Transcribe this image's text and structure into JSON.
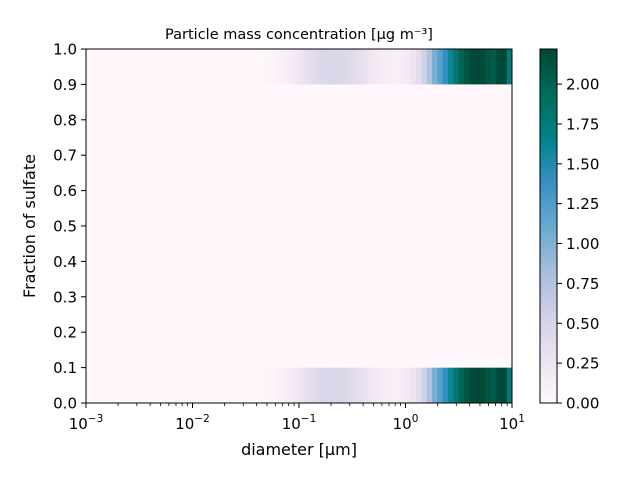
{
  "chart_data": {
    "type": "heatmap",
    "title": "Particle mass concentration [μg m⁻³]",
    "xlabel": "diameter [µm]",
    "ylabel": "Fraction of sulfate",
    "xscale": "log",
    "xlim": [
      0.001,
      10
    ],
    "ylim": [
      0,
      1
    ],
    "x_ticks": [
      {
        "base": "10",
        "exp": "−3"
      },
      {
        "base": "10",
        "exp": "−2"
      },
      {
        "base": "10",
        "exp": "−1"
      },
      {
        "base": "10",
        "exp": "0"
      },
      {
        "base": "10",
        "exp": "1"
      }
    ],
    "y_ticks": [
      "0.0",
      "0.1",
      "0.2",
      "0.3",
      "0.4",
      "0.5",
      "0.6",
      "0.7",
      "0.8",
      "0.9",
      "1.0"
    ],
    "colorbar": {
      "colormap": "PuBuGn",
      "vmin": 0,
      "vmax": 2.22,
      "ticks": [
        "0.00",
        "0.25",
        "0.50",
        "0.75",
        "1.00",
        "1.25",
        "1.50",
        "1.75",
        "2.00"
      ]
    },
    "rows": [
      {
        "y_range": [
          0.0,
          0.1
        ],
        "profile": "active"
      },
      {
        "y_range": [
          0.1,
          0.9
        ],
        "profile": "zero"
      },
      {
        "y_range": [
          0.9,
          1.0
        ],
        "profile": "active"
      }
    ],
    "bin_profile": {
      "x_start": [
        0.0398,
        0.0447,
        0.0501,
        0.0562,
        0.0631,
        0.0708,
        0.0794,
        0.0891,
        0.1,
        0.1122,
        0.1259,
        0.1413,
        0.1585,
        0.1778,
        0.1995,
        0.2239,
        0.2512,
        0.2818,
        0.3162,
        0.3548,
        0.3981,
        0.4467,
        0.5012,
        0.5623,
        0.631,
        0.7079,
        0.7943,
        0.8913,
        1.0,
        1.122,
        1.259,
        1.413,
        1.585,
        1.778,
        1.995,
        2.239,
        2.512,
        2.818,
        3.162,
        3.548,
        3.981,
        4.467,
        5.012,
        5.623,
        6.31,
        7.079,
        7.943,
        8.913
      ],
      "values": [
        0.01,
        0.02,
        0.03,
        0.05,
        0.08,
        0.11,
        0.15,
        0.2,
        0.26,
        0.32,
        0.37,
        0.41,
        0.44,
        0.46,
        0.47,
        0.46,
        0.44,
        0.41,
        0.37,
        0.32,
        0.27,
        0.22,
        0.18,
        0.15,
        0.13,
        0.12,
        0.12,
        0.14,
        0.18,
        0.26,
        0.38,
        0.55,
        0.78,
        1.02,
        1.2,
        1.4,
        1.6,
        1.8,
        2.0,
        2.1,
        2.2,
        2.22,
        2.2,
        2.1,
        2.05,
        2.18,
        2.22,
        1.75
      ]
    }
  }
}
